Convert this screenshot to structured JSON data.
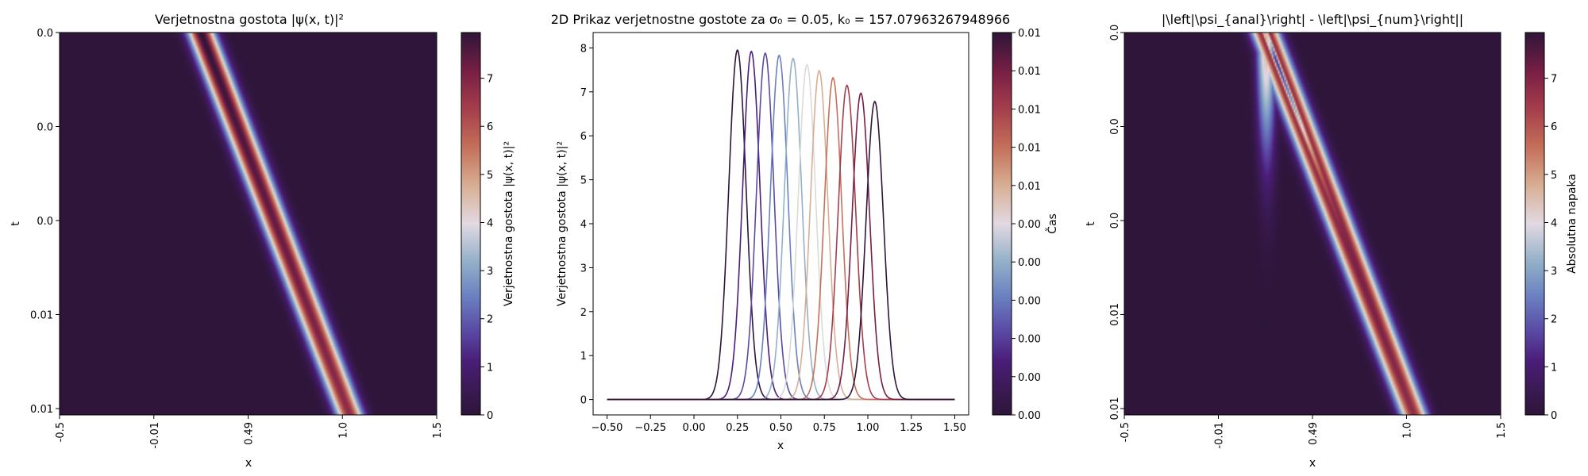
{
  "chart_data": [
    {
      "type": "heatmap",
      "title": "Verjetnostna gostota |ψ(x, t)|²",
      "xlabel": "x",
      "ylabel": "t",
      "x_tick_labels": [
        "-0.5",
        "-0.01",
        "0.49",
        "1.0",
        "1.5"
      ],
      "y_tick_labels": [
        "0.0",
        "0.0",
        "0.0",
        "0.01",
        "0.01"
      ],
      "x_range": [
        -0.5,
        1.5
      ],
      "colorbar": {
        "label": "Verjetnostna gostota |ψ(x, t)|²",
        "ticks": [
          0,
          1,
          2,
          3,
          4,
          5,
          6,
          7
        ],
        "tick_labels": [
          "0",
          "1",
          "2",
          "3",
          "4",
          "5",
          "6",
          "7"
        ],
        "range": [
          0,
          7.95
        ]
      },
      "colormap": "twilight_shifted",
      "packet": {
        "x_start": 0.25,
        "x_end": 1.04,
        "sigma": 0.05,
        "peak_start": 7.95,
        "peak_end": 6.78
      }
    },
    {
      "type": "line",
      "title": "2D Prikaz verjetnostne gostote za σ₀ = 0.05, k₀ = 157.07963267948966",
      "xlabel": "x",
      "ylabel": "Verjetnostna gostota |ψ(x, t)|²",
      "xlim": [
        -0.58,
        1.58
      ],
      "ylim": [
        -0.35,
        8.35
      ],
      "x_ticks": [
        -0.5,
        -0.25,
        0.0,
        0.25,
        0.5,
        0.75,
        1.0,
        1.25,
        1.5
      ],
      "x_tick_labels": [
        "−0.50",
        "−0.25",
        "0.00",
        "0.25",
        "0.50",
        "0.75",
        "1.00",
        "1.25",
        "1.50"
      ],
      "y_ticks": [
        0,
        1,
        2,
        3,
        4,
        5,
        6,
        7,
        8
      ],
      "y_tick_labels": [
        "0",
        "1",
        "2",
        "3",
        "4",
        "5",
        "6",
        "7",
        "8"
      ],
      "x_domain": [
        -0.5,
        1.5
      ],
      "series": [
        {
          "center": 0.25,
          "peak": 7.95,
          "sigma": 0.05,
          "color": "#2e1539"
        },
        {
          "center": 0.33,
          "peak": 7.92,
          "sigma": 0.05,
          "color": "#4a1d78"
        },
        {
          "center": 0.41,
          "peak": 7.88,
          "sigma": 0.05,
          "color": "#5a4aa5"
        },
        {
          "center": 0.49,
          "peak": 7.83,
          "sigma": 0.05,
          "color": "#6a80c0"
        },
        {
          "center": 0.57,
          "peak": 7.76,
          "sigma": 0.05,
          "color": "#92b0c8"
        },
        {
          "center": 0.65,
          "peak": 7.62,
          "sigma": 0.05,
          "color": "#d8dbd8"
        },
        {
          "center": 0.72,
          "peak": 7.48,
          "sigma": 0.05,
          "color": "#d8ae93"
        },
        {
          "center": 0.8,
          "peak": 7.32,
          "sigma": 0.05,
          "color": "#c4705a"
        },
        {
          "center": 0.88,
          "peak": 7.15,
          "sigma": 0.05,
          "color": "#a53e4c"
        },
        {
          "center": 0.96,
          "peak": 6.97,
          "sigma": 0.05,
          "color": "#761e44"
        },
        {
          "center": 1.04,
          "peak": 6.78,
          "sigma": 0.05,
          "color": "#2e1539"
        }
      ],
      "colorbar": {
        "label": "Čas",
        "tick_labels": [
          "0.00",
          "0.00",
          "0.00",
          "0.00",
          "0.00",
          "0.00",
          "0.01",
          "0.01",
          "0.01",
          "0.01",
          "0.01"
        ]
      }
    },
    {
      "type": "heatmap",
      "title": "|\\left|\\psi_{anal}\\right| - \\left|\\psi_{num}\\right||",
      "xlabel": "x",
      "ylabel": "t",
      "x_tick_labels": [
        "-0.5",
        "-0.01",
        "0.49",
        "1.0",
        "1.5"
      ],
      "y_tick_labels": [
        "0.0",
        "0.0",
        "0.0",
        "0.01",
        "0.01"
      ],
      "x_range": [
        -0.5,
        1.5
      ],
      "colorbar": {
        "label": "Absolutna napaka",
        "ticks": [
          0,
          1,
          2,
          3,
          4,
          5,
          6,
          7
        ],
        "tick_labels": [
          "0",
          "1",
          "2",
          "3",
          "4",
          "5",
          "6",
          "7"
        ],
        "range": [
          0,
          7.95
        ]
      },
      "colormap": "twilight_shifted",
      "packet": {
        "x_start": 0.25,
        "x_end": 1.04,
        "sigma": 0.05,
        "peak_start": 7.95,
        "peak_end": 6.78
      },
      "ghost": {
        "x_start": 0.25,
        "x_end": 0.27,
        "t_fade": 0.32,
        "peak": 4.6
      }
    }
  ]
}
